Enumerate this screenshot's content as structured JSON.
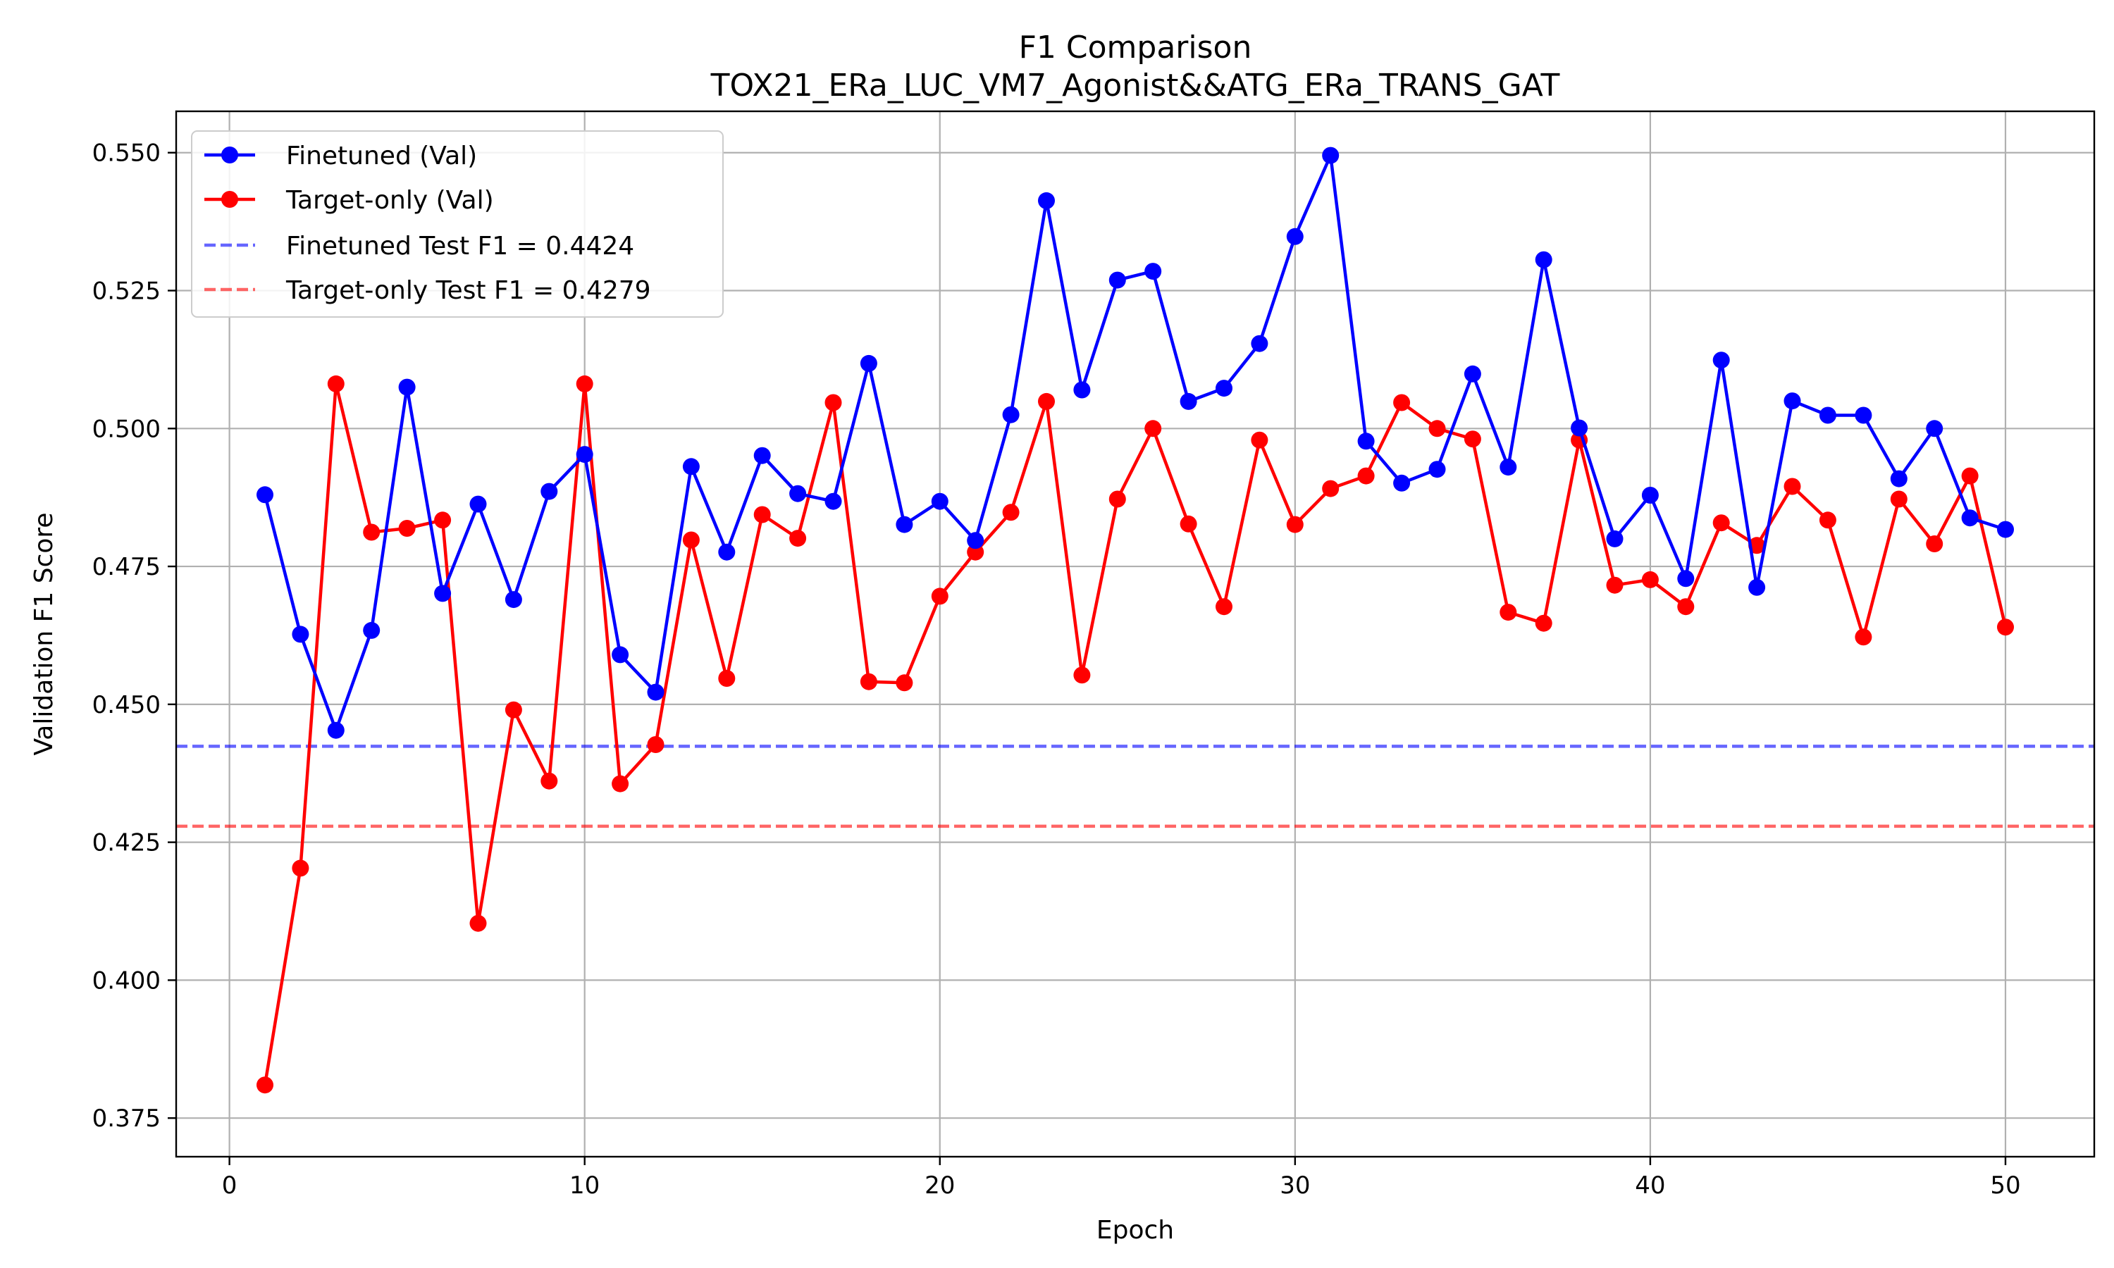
{
  "chart_data": {
    "type": "line",
    "title": "F1 Comparison",
    "subtitle": "TOX21_ERa_LUC_VM7_Agonist&&ATG_ERa_TRANS_GAT",
    "xlabel": "Epoch",
    "ylabel": "Validation F1 Score",
    "xlim": [
      -1.5,
      52.5
    ],
    "ylim": [
      0.368,
      0.5575
    ],
    "xticks": [
      0,
      10,
      20,
      30,
      40,
      50
    ],
    "xtick_labels": [
      "0",
      "10",
      "20",
      "30",
      "40",
      "50"
    ],
    "yticks": [
      0.375,
      0.4,
      0.425,
      0.45,
      0.475,
      0.5,
      0.525,
      0.55
    ],
    "ytick_labels": [
      "0.375",
      "0.400",
      "0.425",
      "0.450",
      "0.475",
      "0.500",
      "0.525",
      "0.550"
    ],
    "grid": true,
    "legend_position": "top-left",
    "x": [
      1,
      2,
      3,
      4,
      5,
      6,
      7,
      8,
      9,
      10,
      11,
      12,
      13,
      14,
      15,
      16,
      17,
      18,
      19,
      20,
      21,
      22,
      23,
      24,
      25,
      26,
      27,
      28,
      29,
      30,
      31,
      32,
      33,
      34,
      35,
      36,
      37,
      38,
      39,
      40,
      41,
      42,
      43,
      44,
      45,
      46,
      47,
      48,
      49,
      50
    ],
    "series": [
      {
        "name": "Finetuned (Val)",
        "color": "#0000ff",
        "marker": "circle",
        "values": [
          0.488,
          0.4627,
          0.4453,
          0.4634,
          0.5075,
          0.4701,
          0.4863,
          0.469,
          0.4886,
          0.4953,
          0.459,
          0.4522,
          0.4931,
          0.4776,
          0.4951,
          0.4882,
          0.4868,
          0.5118,
          0.4826,
          0.4868,
          0.4797,
          0.5025,
          0.5413,
          0.507,
          0.5269,
          0.5285,
          0.5049,
          0.5073,
          0.5154,
          0.5348,
          0.5495,
          0.4977,
          0.4901,
          0.4926,
          0.5099,
          0.493,
          0.5306,
          0.5001,
          0.48,
          0.4879,
          0.4728,
          0.5124,
          0.4712,
          0.505,
          0.5024,
          0.5024,
          0.4909,
          0.5,
          0.4838,
          0.4817
        ]
      },
      {
        "name": "Target-only (Val)",
        "color": "#ff0000",
        "marker": "circle",
        "values": [
          0.381,
          0.4203,
          0.5081,
          0.4812,
          0.4819,
          0.4834,
          0.4103,
          0.449,
          0.4361,
          0.5081,
          0.4356,
          0.4427,
          0.4798,
          0.4547,
          0.4844,
          0.4801,
          0.5047,
          0.4541,
          0.4539,
          0.4696,
          0.4776,
          0.4848,
          0.5049,
          0.4553,
          0.4872,
          0.5,
          0.4827,
          0.4677,
          0.4979,
          0.4826,
          0.4891,
          0.4914,
          0.5047,
          0.5,
          0.4981,
          0.4667,
          0.4647,
          0.4979,
          0.4716,
          0.4726,
          0.4677,
          0.4829,
          0.4788,
          0.4895,
          0.4834,
          0.4622,
          0.4872,
          0.4791,
          0.4914,
          0.464
        ]
      }
    ],
    "reference_lines": [
      {
        "name": "Finetuned Test F1 = 0.4424",
        "value": 0.4424,
        "color": "#0000ff",
        "style": "dashed"
      },
      {
        "name": "Target-only Test F1 = 0.4279",
        "value": 0.4279,
        "color": "#ff0000",
        "style": "dashed"
      }
    ]
  }
}
